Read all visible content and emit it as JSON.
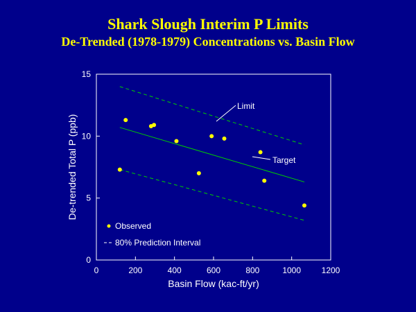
{
  "title": "Shark Slough Interim P Limits",
  "subtitle": "De-Trended (1978-1979) Concentrations vs. Basin Flow",
  "colors": {
    "background": "#00008B",
    "title": "#FFFF00",
    "axes": "#FFFFFF",
    "observed": "#FFFF00",
    "target": "#00CC00",
    "limit": "#00CC00"
  },
  "chart_data": {
    "type": "scatter",
    "xlabel": "Basin Flow (kac-ft/yr)",
    "ylabel": "De-trended Total P (ppb)",
    "xlim": [
      0,
      1200
    ],
    "ylim": [
      0,
      15
    ],
    "xticks": [
      "0",
      "200",
      "400",
      "600",
      "800",
      "1000",
      "1200"
    ],
    "yticks": [
      "0",
      "5",
      "10",
      "15"
    ],
    "grid": false,
    "legend_position": "bottom-left",
    "series": [
      {
        "name": "Observed",
        "kind": "points",
        "points": [
          {
            "x": 120,
            "y": 7.3
          },
          {
            "x": 150,
            "y": 11.3
          },
          {
            "x": 280,
            "y": 10.8
          },
          {
            "x": 295,
            "y": 10.9
          },
          {
            "x": 410,
            "y": 9.6
          },
          {
            "x": 525,
            "y": 7.0
          },
          {
            "x": 590,
            "y": 10.0
          },
          {
            "x": 655,
            "y": 9.8
          },
          {
            "x": 840,
            "y": 8.7
          },
          {
            "x": 860,
            "y": 6.4
          },
          {
            "x": 1065,
            "y": 4.4
          }
        ]
      },
      {
        "name": "Target",
        "kind": "line",
        "points": [
          {
            "x": 120,
            "y": 10.7
          },
          {
            "x": 1065,
            "y": 6.3
          }
        ]
      },
      {
        "name": "Limit",
        "kind": "dashed",
        "points": [
          {
            "x": 120,
            "y": 14.0
          },
          {
            "x": 1065,
            "y": 9.3
          }
        ]
      },
      {
        "name": "80% Prediction Interval",
        "kind": "dashed",
        "points": [
          {
            "x": 120,
            "y": 7.3
          },
          {
            "x": 1065,
            "y": 3.2
          }
        ]
      }
    ],
    "annotations": [
      "Limit",
      "Target"
    ],
    "legend": [
      "Observed",
      "80% Prediction Interval"
    ]
  }
}
